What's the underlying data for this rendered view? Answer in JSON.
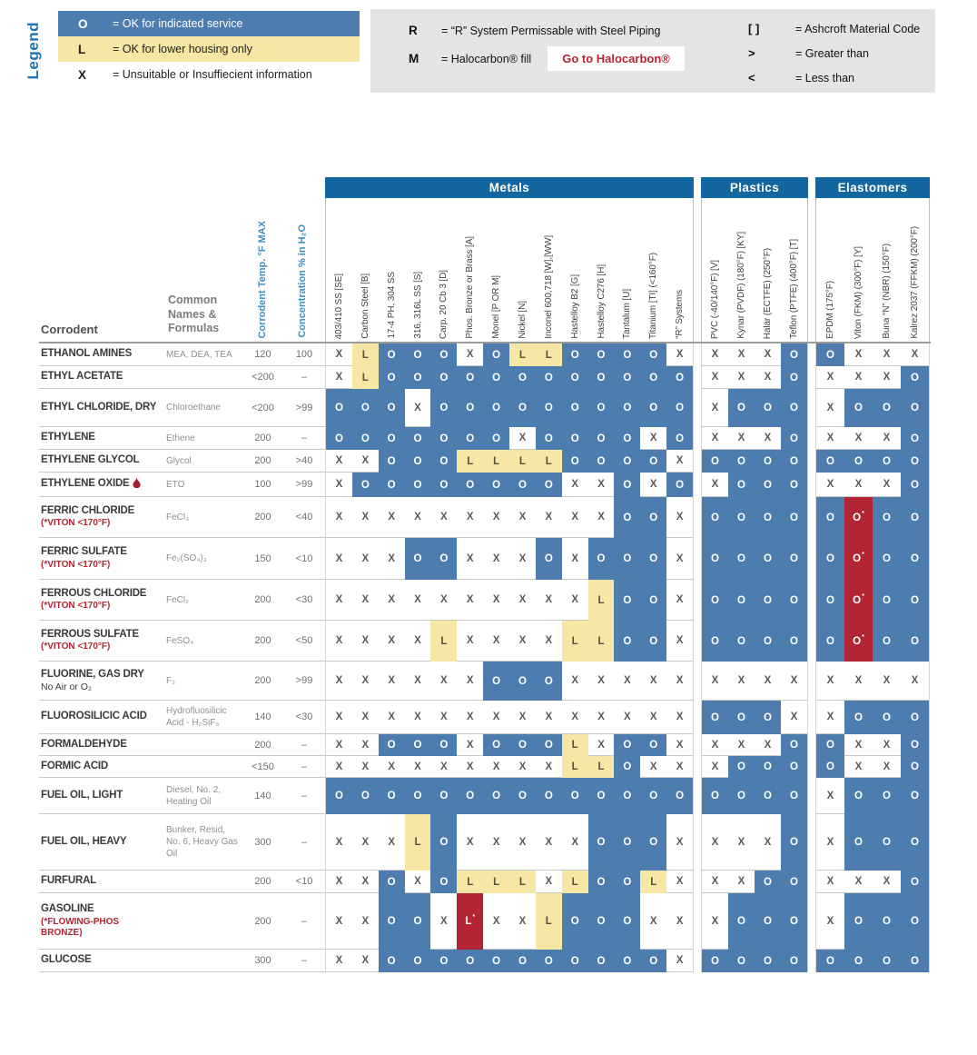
{
  "legend": {
    "title": "Legend",
    "key": [
      {
        "symbol": "O",
        "text": "= OK for indicated service",
        "style": "ok"
      },
      {
        "symbol": "L",
        "text": "= OK for lower housing only",
        "style": "lower"
      },
      {
        "symbol": "X",
        "text": "= Unsuitable or Insuffiecient information",
        "style": "un"
      }
    ],
    "system_notes": [
      {
        "symbol": "R",
        "text": "= “R” System Permissable with Steel Piping"
      },
      {
        "symbol": "M",
        "text": "= Halocarbon® fill",
        "button": "Go to Halocarbon®"
      }
    ],
    "code_notes": [
      {
        "symbol": "[ ]",
        "text": "= Ashcroft Material Code"
      },
      {
        "symbol": ">",
        "text": "= Greater than"
      },
      {
        "symbol": "<",
        "text": "= Less than"
      }
    ]
  },
  "table": {
    "headers": {
      "corrodent": "Corrodent",
      "common": "Common Names & Formulas",
      "temp": "Corrodent Temp. °F MAX",
      "conc": "Concentration % in H₂O"
    },
    "groups": [
      {
        "label": "Metals",
        "columns": [
          "403/410 SS [SE]",
          "Carbon Steel [B]",
          "17-4 PH, 304 SS",
          "316, 316L SS [S]",
          "Carp. 20 Cb 3 [D]",
          "Phos. Bronze or Brass [A]",
          "Monel [P OR M]",
          "Nickel [N]",
          "Inconel 600,718 [W],[WW]",
          "Hastelloy B2 [G]",
          "Hastelloy C276 [H]",
          "Tantalum [U]",
          "Titanium [TI] (<160°F)",
          "“R” Systems"
        ]
      },
      {
        "label": "Plastics",
        "columns": [
          "PVC (-40/140°F) [V]",
          "Kynar (PVDF) (180°F) [KY]",
          "Halar (ECTFE) (250°F)",
          "Teflon (PTFE) (400°F) [T]"
        ]
      },
      {
        "label": "Elastomers",
        "columns": [
          "EPDM (175°F)",
          "Viton (FKM) (300°F) [Y]",
          "Buna “N” (NBR) (150°F)",
          "Kalrez 2037 (FFKM) (200°F)"
        ]
      }
    ],
    "rows": [
      {
        "name": "ETHANOL AMINES",
        "common": "MEA, DEA, TEA",
        "temp": "120",
        "conc": "100",
        "metals": [
          "X",
          "L",
          "O",
          "O",
          "O",
          "X",
          "O",
          "L",
          "L",
          "O",
          "O",
          "O",
          "O",
          "X"
        ],
        "plastics": [
          "X",
          "X",
          "X",
          "O"
        ],
        "elastomers": [
          "O",
          "X",
          "X",
          "X"
        ]
      },
      {
        "name": "ETHYL ACETATE",
        "common": "",
        "temp": "<200",
        "conc": "–",
        "metals": [
          "X",
          "L",
          "O",
          "O",
          "O",
          "O",
          "O",
          "O",
          "O",
          "O",
          "O",
          "O",
          "O",
          "O"
        ],
        "plastics": [
          "X",
          "X",
          "X",
          "O"
        ],
        "elastomers": [
          "X",
          "X",
          "X",
          "O"
        ]
      },
      {
        "name": "ETHYL CHLORIDE, DRY",
        "common": "Chloroethane",
        "temp": "<200",
        "conc": ">99",
        "metals": [
          "O",
          "O",
          "O",
          "X",
          "O",
          "O",
          "O",
          "O",
          "O",
          "O",
          "O",
          "O",
          "O",
          "O"
        ],
        "plastics": [
          "X",
          "O",
          "O",
          "O"
        ],
        "elastomers": [
          "X",
          "O",
          "O",
          "O"
        ]
      },
      {
        "name": "ETHYLENE",
        "common": "Ethene",
        "temp": "200",
        "conc": "–",
        "metals": [
          "O",
          "O",
          "O",
          "O",
          "O",
          "O",
          "O",
          "X",
          "O",
          "O",
          "O",
          "O",
          "X",
          "O"
        ],
        "plastics": [
          "X",
          "X",
          "X",
          "O"
        ],
        "elastomers": [
          "X",
          "X",
          "X",
          "O"
        ]
      },
      {
        "name": "ETHYLENE GLYCOL",
        "common": "Glycol",
        "temp": "200",
        "conc": ">40",
        "metals": [
          "X",
          "X",
          "O",
          "O",
          "O",
          "L",
          "L",
          "L",
          "L",
          "O",
          "O",
          "O",
          "O",
          "X"
        ],
        "plastics": [
          "O",
          "O",
          "O",
          "O"
        ],
        "elastomers": [
          "O",
          "O",
          "O",
          "O"
        ]
      },
      {
        "name": "ETHYLENE OXIDE",
        "icon": "hazard-droplet",
        "common": "ETO",
        "temp": "100",
        "conc": ">99",
        "metals": [
          "X",
          "O",
          "O",
          "O",
          "O",
          "O",
          "O",
          "O",
          "O",
          "X",
          "X",
          "O",
          "X",
          "O"
        ],
        "plastics": [
          "X",
          "O",
          "O",
          "O"
        ],
        "elastomers": [
          "X",
          "X",
          "X",
          "O"
        ]
      },
      {
        "name": "FERRIC CHLORIDE",
        "note": "(*VITON <170°F)",
        "common": "FeCl₃",
        "temp": "200",
        "conc": "<40",
        "metals": [
          "X",
          "X",
          "X",
          "X",
          "X",
          "X",
          "X",
          "X",
          "X",
          "X",
          "X",
          "O",
          "O",
          "X"
        ],
        "plastics": [
          "O",
          "O",
          "O",
          "O"
        ],
        "elastomers": [
          "O",
          "O*",
          "O",
          "O"
        ]
      },
      {
        "name": "FERRIC SULFATE",
        "note": "(*VITON <170°F)",
        "common": "Fe₂(SO₄)₃",
        "temp": "150",
        "conc": "<10",
        "metals": [
          "X",
          "X",
          "X",
          "O",
          "O",
          "X",
          "X",
          "X",
          "O",
          "X",
          "O",
          "O",
          "O",
          "X"
        ],
        "plastics": [
          "O",
          "O",
          "O",
          "O"
        ],
        "elastomers": [
          "O",
          "O*",
          "O",
          "O"
        ]
      },
      {
        "name": "FERROUS CHLORIDE",
        "note": "(*VITON <170°F)",
        "common": "FeCl₂",
        "temp": "200",
        "conc": "<30",
        "metals": [
          "X",
          "X",
          "X",
          "X",
          "X",
          "X",
          "X",
          "X",
          "X",
          "X",
          "L",
          "O",
          "O",
          "X"
        ],
        "plastics": [
          "O",
          "O",
          "O",
          "O"
        ],
        "elastomers": [
          "O",
          "O*",
          "O",
          "O"
        ]
      },
      {
        "name": "FERROUS SULFATE",
        "note": "(*VITON <170°F)",
        "common": "FeSO₄",
        "temp": "200",
        "conc": "<50",
        "metals": [
          "X",
          "X",
          "X",
          "X",
          "L",
          "X",
          "X",
          "X",
          "X",
          "L",
          "L",
          "O",
          "O",
          "X"
        ],
        "plastics": [
          "O",
          "O",
          "O",
          "O"
        ],
        "elastomers": [
          "O",
          "O*",
          "O",
          "O"
        ]
      },
      {
        "name": "FLUORINE, GAS DRY",
        "sub": "No Air or O₂",
        "common": "F₂",
        "temp": "200",
        "conc": ">99",
        "metals": [
          "X",
          "X",
          "X",
          "X",
          "X",
          "X",
          "O",
          "O",
          "O",
          "X",
          "X",
          "X",
          "X",
          "X"
        ],
        "plastics": [
          "X",
          "X",
          "X",
          "X"
        ],
        "elastomers": [
          "X",
          "X",
          "X",
          "X"
        ]
      },
      {
        "name": "FLUOROSILICIC ACID",
        "common": "Hydrofluosilicic Acid - H₂SiF₆",
        "temp": "140",
        "conc": "<30",
        "metals": [
          "X",
          "X",
          "X",
          "X",
          "X",
          "X",
          "X",
          "X",
          "X",
          "X",
          "X",
          "X",
          "X",
          "X"
        ],
        "plastics": [
          "O",
          "O",
          "O",
          "X"
        ],
        "elastomers": [
          "X",
          "O",
          "O",
          "O"
        ]
      },
      {
        "name": "FORMALDEHYDE",
        "common": "",
        "temp": "200",
        "conc": "–",
        "metals": [
          "X",
          "X",
          "O",
          "O",
          "O",
          "X",
          "O",
          "O",
          "O",
          "L",
          "X",
          "O",
          "O",
          "X"
        ],
        "plastics": [
          "X",
          "X",
          "X",
          "O"
        ],
        "elastomers": [
          "O",
          "X",
          "X",
          "O"
        ]
      },
      {
        "name": "FORMIC ACID",
        "common": "",
        "temp": "<150",
        "conc": "–",
        "metals": [
          "X",
          "X",
          "X",
          "X",
          "X",
          "X",
          "X",
          "X",
          "X",
          "L",
          "L",
          "O",
          "X",
          "X"
        ],
        "plastics": [
          "X",
          "O",
          "O",
          "O"
        ],
        "elastomers": [
          "O",
          "X",
          "X",
          "O"
        ]
      },
      {
        "name": "FUEL OIL, LIGHT",
        "common": "Diesel, No. 2, Heating Oil",
        "temp": "140",
        "conc": "–",
        "metals": [
          "O",
          "O",
          "O",
          "O",
          "O",
          "O",
          "O",
          "O",
          "O",
          "O",
          "O",
          "O",
          "O",
          "O"
        ],
        "plastics": [
          "O",
          "O",
          "O",
          "O"
        ],
        "elastomers": [
          "X",
          "O",
          "O",
          "O"
        ]
      },
      {
        "name": "FUEL OIL, HEAVY",
        "common": "Bunker, Resid, No. 6, Heavy Gas Oil",
        "temp": "300",
        "conc": "–",
        "metals": [
          "X",
          "X",
          "X",
          "L",
          "O",
          "X",
          "X",
          "X",
          "X",
          "X",
          "O",
          "O",
          "O",
          "X"
        ],
        "plastics": [
          "X",
          "X",
          "X",
          "O"
        ],
        "elastomers": [
          "X",
          "O",
          "O",
          "O"
        ]
      },
      {
        "name": "FURFURAL",
        "common": "",
        "temp": "200",
        "conc": "<10",
        "metals": [
          "X",
          "X",
          "O",
          "X",
          "O",
          "L",
          "L",
          "L",
          "X",
          "L",
          "O",
          "O",
          "L",
          "X"
        ],
        "plastics": [
          "X",
          "X",
          "O",
          "O"
        ],
        "elastomers": [
          "X",
          "X",
          "X",
          "O"
        ]
      },
      {
        "name": "GASOLINE",
        "note": "(*FLOWING-PHOS BRONZE)",
        "common": "",
        "temp": "200",
        "conc": "–",
        "metals": [
          "X",
          "X",
          "O",
          "O",
          "X",
          "L*",
          "X",
          "X",
          "L",
          "O",
          "O",
          "O",
          "X",
          "X"
        ],
        "plastics": [
          "X",
          "O",
          "O",
          "O"
        ],
        "elastomers": [
          "X",
          "O",
          "O",
          "O"
        ]
      },
      {
        "name": "GLUCOSE",
        "common": "",
        "temp": "300",
        "conc": "–",
        "metals": [
          "X",
          "X",
          "O",
          "O",
          "O",
          "O",
          "O",
          "O",
          "O",
          "O",
          "O",
          "O",
          "O",
          "X"
        ],
        "plastics": [
          "O",
          "O",
          "O",
          "O"
        ],
        "elastomers": [
          "O",
          "O",
          "O",
          "O"
        ]
      }
    ]
  }
}
